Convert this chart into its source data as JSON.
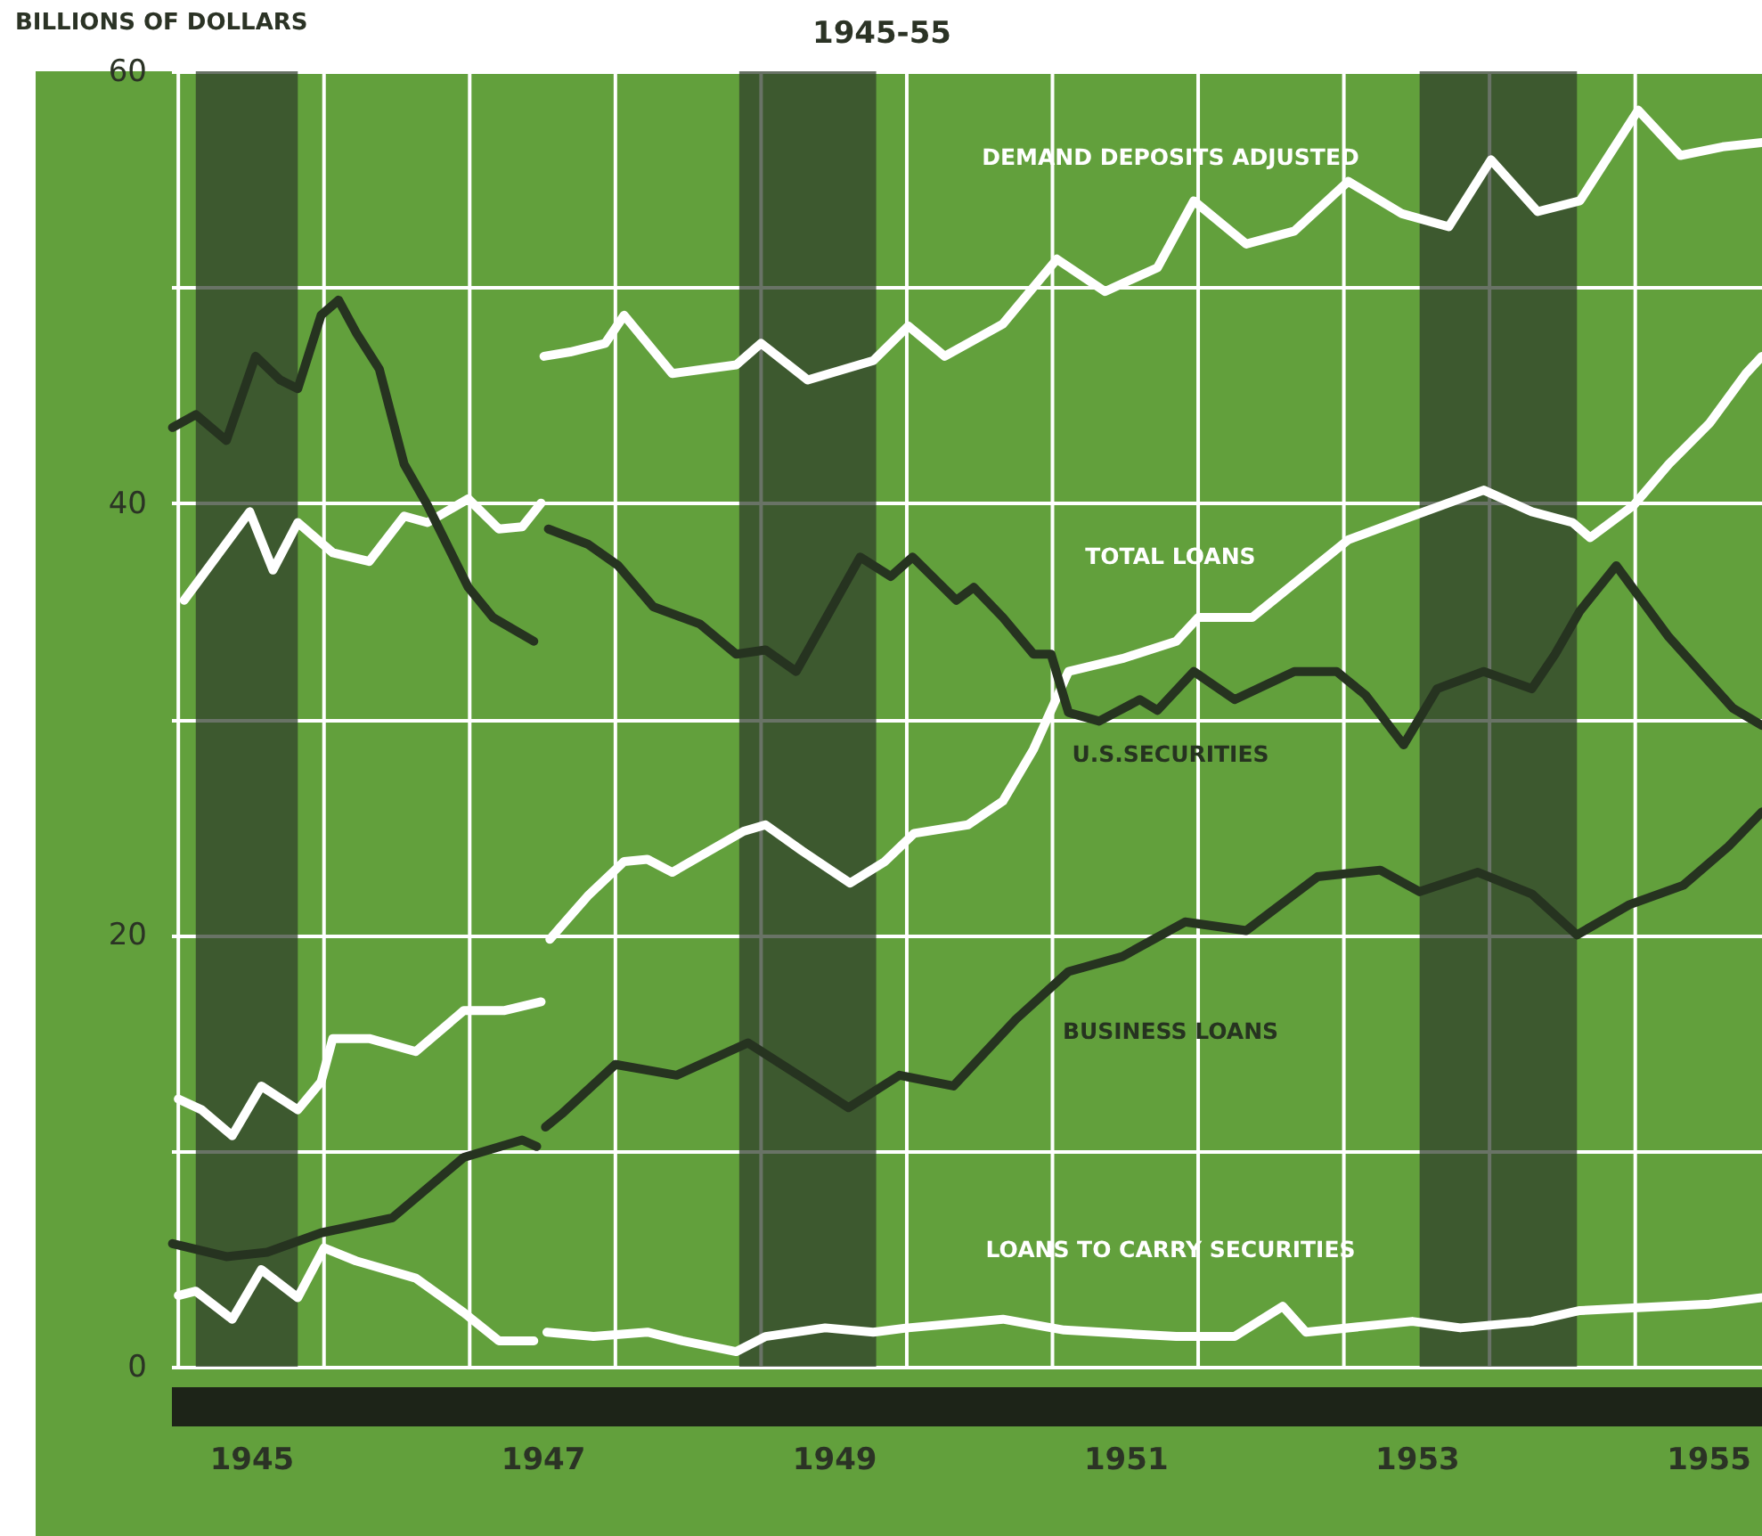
{
  "chart_data": {
    "type": "line",
    "title": "1945-55",
    "ylabel": "BILLIONS OF DOLLARS",
    "xlim": [
      1944.95,
      1955.87
    ],
    "ylim": [
      0,
      60
    ],
    "xticks": [
      {
        "value": 1945,
        "label": null
      },
      {
        "value": 1945.5,
        "label": "1945"
      },
      {
        "value": 1946,
        "label": null
      },
      {
        "value": 1947,
        "label": null
      },
      {
        "value": 1947.5,
        "label": "1947"
      },
      {
        "value": 1948,
        "label": null
      },
      {
        "value": 1949,
        "label": null
      },
      {
        "value": 1949.5,
        "label": "1949"
      },
      {
        "value": 1950,
        "label": null
      },
      {
        "value": 1951,
        "label": null
      },
      {
        "value": 1951.5,
        "label": "1951"
      },
      {
        "value": 1952,
        "label": null
      },
      {
        "value": 1953,
        "label": null
      },
      {
        "value": 1953.5,
        "label": "1953"
      },
      {
        "value": 1954,
        "label": null
      },
      {
        "value": 1955,
        "label": null
      },
      {
        "value": 1955.5,
        "label": "1955"
      }
    ],
    "yticks": [
      0,
      {
        "value": 10,
        "label": null
      },
      20,
      {
        "value": 30,
        "label": null
      },
      40,
      {
        "value": 50,
        "label": null
      },
      60
    ],
    "grid": true,
    "legend": false,
    "line_style": "solid",
    "marker": "none",
    "bands": [
      {
        "axis": "x",
        "from": 1945.12,
        "to": 1945.82,
        "color": "#2f3d2b"
      },
      {
        "axis": "x",
        "from": 1948.85,
        "to": 1949.79,
        "color": "#2f3d2b"
      },
      {
        "axis": "x",
        "from": 1953.52,
        "to": 1954.6,
        "color": "#2f3d2b"
      }
    ],
    "series": [
      {
        "name": "DEMAND DEPOSITS ADJUSTED",
        "color": "#ffffff",
        "x": [
          1945.04,
          1945.49,
          1945.65,
          1945.82,
          1946.06,
          1946.31,
          1946.55,
          1946.71,
          1946.99,
          1947.2,
          1947.36,
          1947.49,
          1947.5,
          1947.51,
          1947.69,
          1947.93,
          1948.06,
          1948.39,
          1948.83,
          1949.0,
          1949.32,
          1949.77,
          1950.01,
          1950.26,
          1950.66,
          1951.03,
          1951.36,
          1951.72,
          1951.97,
          1952.33,
          1952.66,
          1953.03,
          1953.4,
          1953.72,
          1954.01,
          1954.33,
          1954.62,
          1955.02,
          1955.31,
          1955.6,
          1955.87
        ],
        "values": [
          35.5,
          39.6,
          36.9,
          39.1,
          37.7,
          37.3,
          39.4,
          39.1,
          40.2,
          38.8,
          38.9,
          40.0,
          null,
          46.8,
          47.0,
          47.4,
          48.7,
          46.0,
          46.4,
          47.4,
          45.7,
          46.6,
          48.2,
          46.8,
          48.3,
          51.3,
          49.8,
          50.9,
          54.0,
          52.0,
          52.6,
          54.9,
          53.4,
          52.8,
          55.9,
          53.5,
          54.0,
          58.2,
          56.1,
          56.5,
          56.7
        ]
      },
      {
        "name": "TOTAL LOANS",
        "color": "#ffffff",
        "x": [
          1945.0,
          1945.16,
          1945.37,
          1945.57,
          1945.82,
          1945.98,
          1946.06,
          1946.31,
          1946.63,
          1946.96,
          1947.24,
          1947.49,
          1947.5,
          1947.55,
          1947.81,
          1948.06,
          1948.22,
          1948.39,
          1948.88,
          1949.03,
          1949.28,
          1949.61,
          1949.85,
          1950.05,
          1950.42,
          1950.66,
          1950.87,
          1951.11,
          1951.48,
          1951.85,
          1952.0,
          1952.37,
          1953.03,
          1953.47,
          1953.96,
          1954.29,
          1954.57,
          1954.69,
          1954.99,
          1955.23,
          1955.51,
          1955.76,
          1955.87
        ],
        "values": [
          12.4,
          11.9,
          10.7,
          13.0,
          11.9,
          13.2,
          15.2,
          15.2,
          14.6,
          16.5,
          16.5,
          16.9,
          null,
          19.8,
          21.8,
          23.4,
          23.5,
          22.9,
          24.8,
          25.1,
          23.9,
          22.4,
          23.4,
          24.7,
          25.1,
          26.2,
          28.6,
          32.2,
          32.8,
          33.6,
          34.7,
          34.7,
          38.3,
          39.4,
          40.6,
          39.6,
          39.1,
          38.4,
          39.9,
          41.8,
          43.7,
          46.0,
          46.8
        ]
      },
      {
        "name": "U.S.SECURITIES",
        "color": "#263320",
        "x": [
          1944.96,
          1945.12,
          1945.33,
          1945.53,
          1945.7,
          1945.82,
          1945.98,
          1946.1,
          1946.22,
          1946.38,
          1946.55,
          1946.71,
          1946.99,
          1947.16,
          1947.44,
          1947.5,
          1947.54,
          1947.81,
          1948.02,
          1948.26,
          1948.58,
          1948.83,
          1949.03,
          1949.24,
          1949.68,
          1949.89,
          1950.04,
          1950.34,
          1950.46,
          1950.66,
          1950.87,
          1950.99,
          1951.11,
          1951.32,
          1951.6,
          1951.72,
          1951.97,
          1952.25,
          1952.66,
          1952.95,
          1953.15,
          1953.41,
          1953.64,
          1953.96,
          1954.29,
          1954.45,
          1954.62,
          1954.87,
          1955.23,
          1955.67,
          1955.87
        ],
        "values": [
          43.5,
          44.1,
          42.9,
          46.8,
          45.7,
          45.3,
          48.7,
          49.4,
          47.9,
          46.2,
          41.8,
          39.9,
          36.1,
          34.7,
          33.6,
          null,
          38.8,
          38.1,
          37.1,
          35.2,
          34.4,
          33.0,
          33.2,
          32.2,
          37.5,
          36.6,
          37.5,
          35.5,
          36.1,
          34.7,
          33.0,
          33.0,
          30.3,
          29.9,
          30.9,
          30.4,
          32.2,
          30.9,
          32.2,
          32.2,
          31.1,
          28.8,
          31.4,
          32.2,
          31.4,
          33.0,
          35.0,
          37.1,
          33.8,
          30.5,
          29.7
        ]
      },
      {
        "name": "BUSINESS LOANS",
        "color": "#263320",
        "x": [
          1944.96,
          1945.33,
          1945.61,
          1945.98,
          1946.47,
          1946.96,
          1947.36,
          1947.46,
          1947.5,
          1947.52,
          1947.63,
          1948.0,
          1948.42,
          1948.91,
          1949.28,
          1949.6,
          1949.95,
          1950.32,
          1950.75,
          1951.11,
          1951.48,
          1951.91,
          1952.33,
          1952.82,
          1953.25,
          1953.52,
          1953.92,
          1954.29,
          1954.6,
          1954.96,
          1955.33,
          1955.64,
          1955.87
        ],
        "values": [
          5.7,
          5.1,
          5.3,
          6.2,
          6.9,
          9.7,
          10.5,
          10.2,
          null,
          11.1,
          11.7,
          14.0,
          13.5,
          15.0,
          13.4,
          12.0,
          13.5,
          13.0,
          16.1,
          18.3,
          19.0,
          20.6,
          20.2,
          22.7,
          23.0,
          22.0,
          22.9,
          21.9,
          20.0,
          21.4,
          22.3,
          24.1,
          25.7
        ]
      },
      {
        "name": "LOANS TO CARRY SECURITIES",
        "color": "#ffffff",
        "x": [
          1945.0,
          1945.12,
          1945.37,
          1945.57,
          1945.82,
          1946.0,
          1946.22,
          1946.63,
          1946.96,
          1947.2,
          1947.44,
          1947.5,
          1947.53,
          1947.85,
          1948.22,
          1948.46,
          1948.83,
          1949.03,
          1949.44,
          1949.77,
          1950.01,
          1950.66,
          1951.08,
          1951.85,
          1952.25,
          1952.58,
          1952.74,
          1953.47,
          1953.8,
          1954.29,
          1954.62,
          1955.51,
          1955.87
        ],
        "values": [
          3.3,
          3.5,
          2.2,
          4.5,
          3.2,
          5.5,
          4.9,
          4.1,
          2.5,
          1.2,
          1.2,
          null,
          1.6,
          1.4,
          1.6,
          1.2,
          0.7,
          1.4,
          1.8,
          1.6,
          1.8,
          2.2,
          1.7,
          1.4,
          1.4,
          2.8,
          1.6,
          2.1,
          1.8,
          2.1,
          2.6,
          2.9,
          3.2
        ]
      }
    ]
  }
}
